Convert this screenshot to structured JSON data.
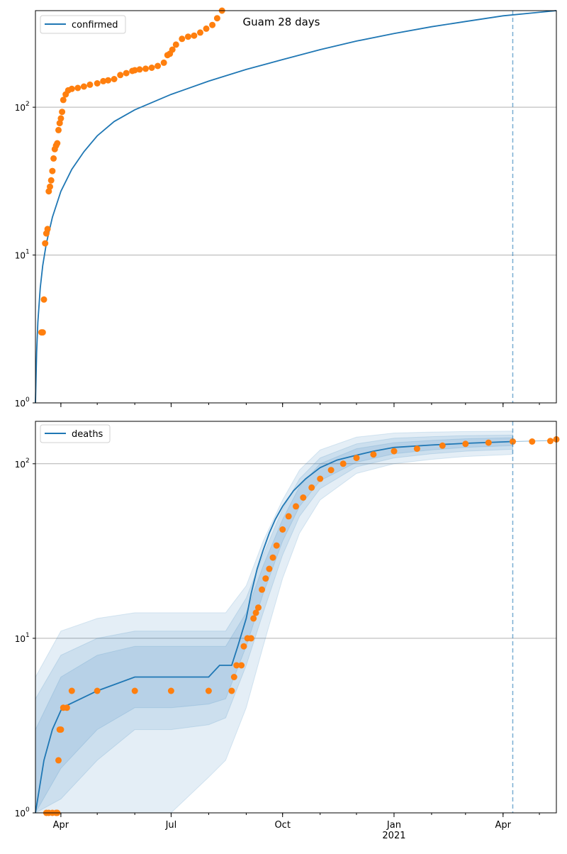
{
  "chart_data": [
    {
      "type": "line",
      "title": "Guam 28 days",
      "yscale": "log",
      "ylim": [
        1,
        450
      ],
      "xlim": [
        "2020-03-11",
        "2021-05-15"
      ],
      "x_tick_labels": [
        {
          "date": "2020-04-01",
          "label": "Apr",
          "sub": ""
        },
        {
          "date": "2020-07-01",
          "label": "Jul",
          "sub": ""
        },
        {
          "date": "2020-10-01",
          "label": "Oct",
          "sub": ""
        },
        {
          "date": "2021-01-01",
          "label": "Jan",
          "sub": "2021"
        },
        {
          "date": "2021-04-01",
          "label": "Apr",
          "sub": ""
        }
      ],
      "y_tick_labels": [
        {
          "value": 1,
          "label": "10",
          "exp": "0"
        },
        {
          "value": 10,
          "label": "10",
          "exp": "1"
        },
        {
          "value": 100,
          "label": "10",
          "exp": "2"
        }
      ],
      "grid": "horizontal at decades",
      "legend": {
        "label": "confirmed",
        "location": "top-left"
      },
      "vline_date": "2021-04-09",
      "colors": {
        "model": "#1f77b4",
        "observed": "#ff7f0e"
      },
      "model_series": {
        "name": "confirmed",
        "x": [
          "2020-03-11",
          "2020-03-12",
          "2020-03-13",
          "2020-03-15",
          "2020-03-17",
          "2020-03-20",
          "2020-03-25",
          "2020-04-01",
          "2020-04-10",
          "2020-04-20",
          "2020-05-01",
          "2020-05-15",
          "2020-06-01",
          "2020-07-01",
          "2020-08-01",
          "2020-09-01",
          "2020-10-01",
          "2020-11-01",
          "2020-12-01",
          "2021-01-01",
          "2021-02-01",
          "2021-03-01",
          "2021-04-01",
          "2021-05-15"
        ],
        "y": [
          1,
          2.2,
          3.5,
          6,
          8.5,
          12,
          18,
          27,
          38,
          50,
          64,
          80,
          96,
          122,
          150,
          180,
          210,
          245,
          280,
          315,
          350,
          380,
          415,
          450
        ]
      },
      "observed_series": {
        "x": [
          "2020-03-16",
          "2020-03-17",
          "2020-03-18",
          "2020-03-19",
          "2020-03-20",
          "2020-03-21",
          "2020-03-22",
          "2020-03-23",
          "2020-03-24",
          "2020-03-25",
          "2020-03-26",
          "2020-03-27",
          "2020-03-28",
          "2020-03-29",
          "2020-03-30",
          "2020-03-31",
          "2020-04-01",
          "2020-04-02",
          "2020-04-03",
          "2020-04-05",
          "2020-04-07",
          "2020-04-10",
          "2020-04-15",
          "2020-04-20",
          "2020-04-25",
          "2020-05-01",
          "2020-05-06",
          "2020-05-10",
          "2020-05-15",
          "2020-05-20",
          "2020-05-25",
          "2020-05-30",
          "2020-06-01",
          "2020-06-05",
          "2020-06-10",
          "2020-06-15",
          "2020-06-20",
          "2020-06-25",
          "2020-06-28",
          "2020-06-30",
          "2020-07-02",
          "2020-07-05",
          "2020-07-10",
          "2020-07-15",
          "2020-07-20",
          "2020-07-25",
          "2020-07-30",
          "2020-08-04",
          "2020-08-08",
          "2020-08-12"
        ],
        "y": [
          3,
          3,
          5,
          12,
          14,
          15,
          27,
          29,
          32,
          37,
          45,
          52,
          55,
          57,
          70,
          78,
          84,
          93,
          112,
          122,
          130,
          133,
          135,
          138,
          142,
          145,
          150,
          152,
          155,
          165,
          170,
          176,
          178,
          180,
          182,
          185,
          190,
          200,
          225,
          230,
          245,
          265,
          290,
          300,
          305,
          320,
          340,
          360,
          400,
          450
        ]
      }
    },
    {
      "type": "line",
      "title": "",
      "yscale": "log",
      "ylim": [
        1,
        175
      ],
      "xlim": [
        "2020-03-11",
        "2021-05-15"
      ],
      "x_tick_labels": [
        {
          "date": "2020-04-01",
          "label": "Apr",
          "sub": ""
        },
        {
          "date": "2020-07-01",
          "label": "Jul",
          "sub": ""
        },
        {
          "date": "2020-10-01",
          "label": "Oct",
          "sub": ""
        },
        {
          "date": "2021-01-01",
          "label": "Jan",
          "sub": "2021"
        },
        {
          "date": "2021-04-01",
          "label": "Apr",
          "sub": ""
        }
      ],
      "y_tick_labels": [
        {
          "value": 1,
          "label": "10",
          "exp": "0"
        },
        {
          "value": 10,
          "label": "10",
          "exp": "1"
        },
        {
          "value": 100,
          "label": "10",
          "exp": "2"
        }
      ],
      "grid": "horizontal at decades",
      "legend": {
        "label": "deaths",
        "location": "top-left"
      },
      "vline_date": "2021-04-09",
      "colors": {
        "model": "#1f77b4",
        "observed": "#ff7f0e",
        "band": "#1f77b4"
      },
      "model_series": {
        "name": "deaths",
        "x": [
          "2020-03-11",
          "2020-03-18",
          "2020-03-25",
          "2020-04-02",
          "2020-05-01",
          "2020-06-01",
          "2020-07-01",
          "2020-08-01",
          "2020-08-10",
          "2020-08-20",
          "2020-08-25",
          "2020-09-01",
          "2020-09-05",
          "2020-09-10",
          "2020-09-15",
          "2020-09-20",
          "2020-09-25",
          "2020-10-01",
          "2020-10-10",
          "2020-10-20",
          "2020-11-01",
          "2020-11-15",
          "2020-12-01",
          "2020-12-15",
          "2021-01-01",
          "2021-02-01",
          "2021-03-01",
          "2021-04-09"
        ],
        "y": [
          1,
          2,
          3,
          4,
          5,
          6,
          6,
          6,
          7,
          7,
          9,
          13,
          18,
          25,
          32,
          40,
          48,
          57,
          70,
          82,
          95,
          105,
          112,
          118,
          124,
          128,
          131,
          134
        ],
        "x_future": [
          "2021-04-09",
          "2021-05-15"
        ],
        "y_future": [
          134,
          136
        ]
      },
      "confidence_bands": [
        {
          "x": [
            "2020-03-11",
            "2020-04-01",
            "2020-05-01",
            "2020-06-01",
            "2020-07-01",
            "2020-08-01",
            "2020-08-15",
            "2020-09-01",
            "2020-09-15",
            "2020-10-01",
            "2020-10-15",
            "2020-11-01",
            "2020-12-01",
            "2021-01-01",
            "2021-02-01",
            "2021-03-01",
            "2021-04-09"
          ],
          "lower": [
            1,
            1,
            1,
            1,
            1,
            1.6,
            2,
            4,
            9,
            22,
            40,
            62,
            88,
            100,
            106,
            110,
            113
          ],
          "upper": [
            6,
            11,
            13,
            14,
            14,
            14,
            14,
            20,
            36,
            62,
            92,
            120,
            142,
            150,
            152,
            153,
            154
          ]
        },
        {
          "x": [
            "2020-03-11",
            "2020-04-01",
            "2020-05-01",
            "2020-06-01",
            "2020-07-01",
            "2020-08-01",
            "2020-08-15",
            "2020-09-01",
            "2020-09-15",
            "2020-10-01",
            "2020-10-15",
            "2020-11-01",
            "2020-12-01",
            "2021-01-01",
            "2021-02-01",
            "2021-03-01",
            "2021-04-09"
          ],
          "lower": [
            1,
            1.2,
            2,
            3,
            3,
            3.2,
            3.5,
            7,
            14,
            30,
            50,
            72,
            96,
            108,
            114,
            118,
            121
          ],
          "upper": [
            4.5,
            8,
            10,
            11,
            11,
            11,
            11,
            17,
            30,
            55,
            82,
            108,
            130,
            140,
            143,
            145,
            146
          ]
        },
        {
          "x": [
            "2020-03-11",
            "2020-04-01",
            "2020-05-01",
            "2020-06-01",
            "2020-07-01",
            "2020-08-01",
            "2020-08-15",
            "2020-09-01",
            "2020-09-15",
            "2020-10-01",
            "2020-10-15",
            "2020-11-01",
            "2020-12-01",
            "2021-01-01",
            "2021-02-01",
            "2021-03-01",
            "2021-04-09"
          ],
          "lower": [
            1,
            1.8,
            3,
            4,
            4,
            4.2,
            4.5,
            9,
            18,
            36,
            57,
            80,
            102,
            114,
            120,
            124,
            127
          ],
          "upper": [
            3,
            6,
            8,
            9,
            9,
            9,
            9,
            14,
            26,
            48,
            74,
            100,
            122,
            132,
            136,
            139,
            141
          ]
        }
      ],
      "observed_series": {
        "x": [
          "2020-03-20",
          "2020-03-22",
          "2020-03-25",
          "2020-03-28",
          "2020-03-29",
          "2020-03-30",
          "2020-03-31",
          "2020-04-01",
          "2020-04-03",
          "2020-04-06",
          "2020-04-10",
          "2020-05-01",
          "2020-06-01",
          "2020-07-01",
          "2020-08-01",
          "2020-08-20",
          "2020-08-22",
          "2020-08-24",
          "2020-08-28",
          "2020-08-30",
          "2020-09-02",
          "2020-09-05",
          "2020-09-07",
          "2020-09-09",
          "2020-09-11",
          "2020-09-14",
          "2020-09-17",
          "2020-09-20",
          "2020-09-23",
          "2020-09-26",
          "2020-10-01",
          "2020-10-06",
          "2020-10-12",
          "2020-10-18",
          "2020-10-25",
          "2020-11-01",
          "2020-11-10",
          "2020-11-20",
          "2020-12-01",
          "2020-12-15",
          "2021-01-01",
          "2021-01-20",
          "2021-02-10",
          "2021-03-01",
          "2021-03-20",
          "2021-04-09",
          "2021-04-25",
          "2021-05-10",
          "2021-05-15"
        ],
        "y": [
          1,
          1,
          1,
          1,
          1,
          2,
          3,
          3,
          4,
          4,
          5,
          5,
          5,
          5,
          5,
          5,
          6,
          7,
          7,
          9,
          10,
          10,
          13,
          14,
          15,
          19,
          22,
          25,
          29,
          34,
          42,
          50,
          57,
          64,
          73,
          82,
          92,
          100,
          108,
          113,
          118,
          122,
          127,
          130,
          132,
          134,
          134,
          135,
          138
        ]
      }
    }
  ]
}
